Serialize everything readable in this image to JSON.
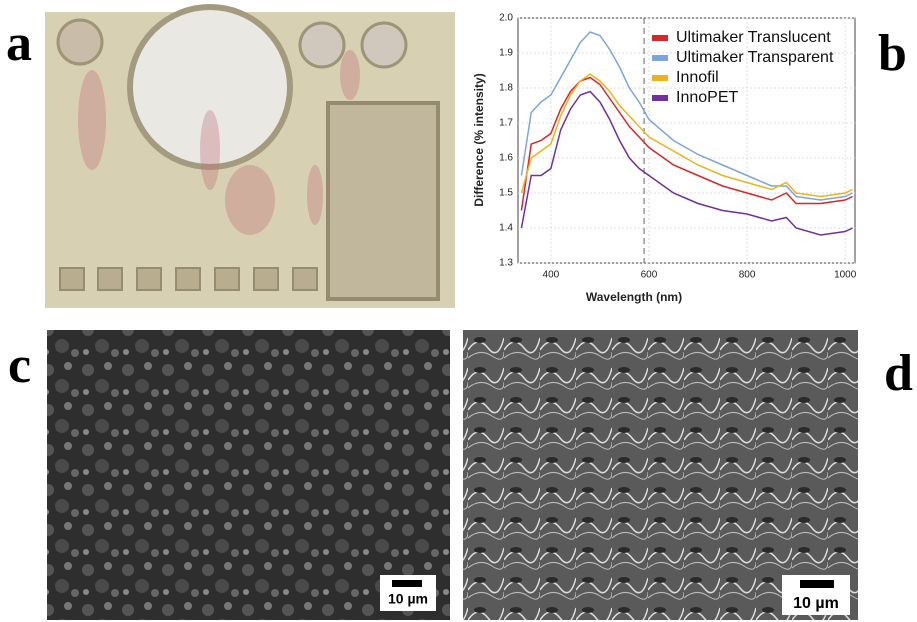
{
  "panel_labels": [
    "a",
    "b",
    "c",
    "d"
  ],
  "scale_bars": [
    "10 µm",
    "10 µm"
  ],
  "chart_data": {
    "type": "line",
    "x_label": "Wavelength (nm)",
    "y_label": "Difference (% intensity)",
    "x": [
      340,
      360,
      380,
      400,
      420,
      440,
      460,
      480,
      500,
      520,
      540,
      560,
      580,
      600,
      650,
      700,
      750,
      800,
      850,
      880,
      900,
      950,
      1000,
      1015
    ],
    "series": [
      {
        "name": "Ultimaker Translucent",
        "color": "#d9262b",
        "values": [
          1.45,
          1.64,
          1.65,
          1.67,
          1.74,
          1.79,
          1.82,
          1.83,
          1.81,
          1.77,
          1.73,
          1.69,
          1.66,
          1.63,
          1.58,
          1.55,
          1.52,
          1.5,
          1.48,
          1.5,
          1.47,
          1.47,
          1.48,
          1.49
        ]
      },
      {
        "name": "Ultimaker Transparent",
        "color": "#7ea6dc",
        "values": [
          1.55,
          1.73,
          1.76,
          1.78,
          1.83,
          1.88,
          1.93,
          1.96,
          1.95,
          1.91,
          1.86,
          1.8,
          1.76,
          1.71,
          1.65,
          1.61,
          1.58,
          1.55,
          1.52,
          1.52,
          1.49,
          1.48,
          1.49,
          1.5
        ]
      },
      {
        "name": "Innofil",
        "color": "#f0b21c",
        "values": [
          1.5,
          1.6,
          1.62,
          1.64,
          1.72,
          1.78,
          1.82,
          1.84,
          1.82,
          1.79,
          1.75,
          1.72,
          1.69,
          1.66,
          1.62,
          1.58,
          1.55,
          1.53,
          1.51,
          1.53,
          1.5,
          1.49,
          1.5,
          1.51
        ]
      },
      {
        "name": "InnoPET",
        "color": "#7030a0",
        "values": [
          1.4,
          1.55,
          1.55,
          1.57,
          1.68,
          1.74,
          1.78,
          1.79,
          1.76,
          1.71,
          1.65,
          1.6,
          1.57,
          1.55,
          1.5,
          1.47,
          1.45,
          1.44,
          1.42,
          1.43,
          1.4,
          1.38,
          1.39,
          1.4
        ]
      }
    ],
    "xlim": [
      333,
      1020
    ],
    "xticks": [
      400,
      600,
      800,
      1000
    ],
    "ylim": [
      1.3,
      2.0
    ],
    "yticks": [
      1.3,
      1.4,
      1.5,
      1.6,
      1.7,
      1.8,
      1.9,
      {
        "value": 2.0,
        "label": "2.0"
      }
    ],
    "vline_x": 590,
    "grid": true,
    "legend": "upper right"
  }
}
